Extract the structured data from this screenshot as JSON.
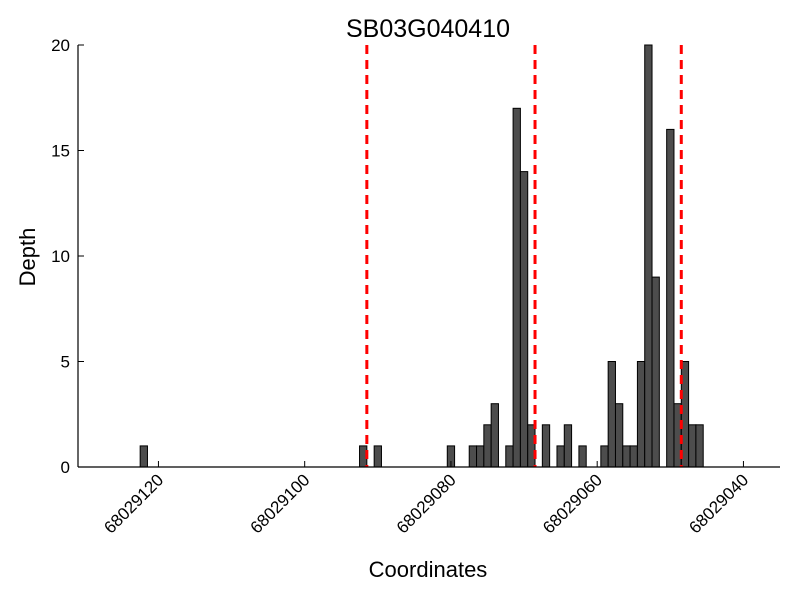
{
  "chart_data": {
    "type": "bar",
    "title": "SB03G040410",
    "xlabel": "Coordinates",
    "ylabel": "Depth",
    "x_reversed": true,
    "xlim": [
      68029131,
      68029035
    ],
    "ylim": [
      0,
      20
    ],
    "xticks": [
      68029120,
      68029100,
      68029080,
      68029060,
      68029040
    ],
    "xtick_labels": [
      "68029120",
      "68029100",
      "68029080",
      "68029060",
      "68029040"
    ],
    "yticks": [
      0,
      5,
      10,
      15,
      20
    ],
    "ytick_labels": [
      "0",
      "5",
      "10",
      "15",
      "20"
    ],
    "grid": false,
    "bar_color": "#4d4d4d",
    "vline_color": "#ff0000",
    "vlines": [
      68029091.5,
      68029068.5,
      68029048.5
    ],
    "bars": [
      {
        "x": 68029122,
        "y": 1
      },
      {
        "x": 68029092,
        "y": 1
      },
      {
        "x": 68029090,
        "y": 1
      },
      {
        "x": 68029080,
        "y": 1
      },
      {
        "x": 68029077,
        "y": 1
      },
      {
        "x": 68029076,
        "y": 1
      },
      {
        "x": 68029075,
        "y": 2
      },
      {
        "x": 68029074,
        "y": 3
      },
      {
        "x": 68029072,
        "y": 1
      },
      {
        "x": 68029071,
        "y": 17
      },
      {
        "x": 68029070,
        "y": 14
      },
      {
        "x": 68029069,
        "y": 2
      },
      {
        "x": 68029067,
        "y": 2
      },
      {
        "x": 68029065,
        "y": 1
      },
      {
        "x": 68029064,
        "y": 2
      },
      {
        "x": 68029062,
        "y": 1
      },
      {
        "x": 68029059,
        "y": 1
      },
      {
        "x": 68029058,
        "y": 5
      },
      {
        "x": 68029057,
        "y": 3
      },
      {
        "x": 68029056,
        "y": 1
      },
      {
        "x": 68029055,
        "y": 1
      },
      {
        "x": 68029054,
        "y": 5
      },
      {
        "x": 68029053,
        "y": 20
      },
      {
        "x": 68029052,
        "y": 9
      },
      {
        "x": 68029050,
        "y": 16
      },
      {
        "x": 68029049,
        "y": 3
      },
      {
        "x": 68029048,
        "y": 5
      },
      {
        "x": 68029047,
        "y": 2
      },
      {
        "x": 68029046,
        "y": 2
      }
    ]
  }
}
